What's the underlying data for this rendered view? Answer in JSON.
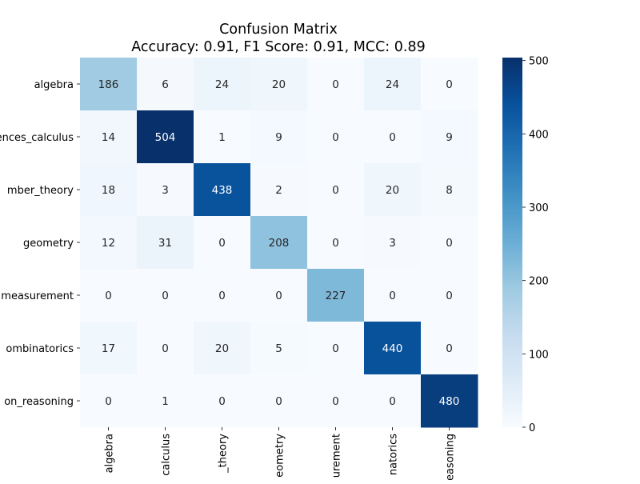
{
  "chart_data": {
    "type": "heatmap",
    "title": "Confusion Matrix",
    "subtitle": "Accuracy: 0.91, F1 Score: 0.91, MCC: 0.89",
    "row_labels": [
      "algebra",
      "ences_calculus",
      "mber_theory",
      "geometry",
      "measurement",
      "ombinatorics",
      "on_reasoning"
    ],
    "col_labels": [
      "algebra",
      "calculus",
      "_theory",
      "eometry",
      "urement",
      "natorics",
      "easoning"
    ],
    "matrix": [
      [
        186,
        6,
        24,
        20,
        0,
        24,
        0
      ],
      [
        14,
        504,
        1,
        9,
        0,
        0,
        9
      ],
      [
        18,
        3,
        438,
        2,
        0,
        20,
        8
      ],
      [
        12,
        31,
        0,
        208,
        0,
        3,
        0
      ],
      [
        0,
        0,
        0,
        0,
        227,
        0,
        0
      ],
      [
        17,
        0,
        20,
        5,
        0,
        440,
        0
      ],
      [
        0,
        1,
        0,
        0,
        0,
        0,
        480
      ]
    ],
    "colorbar": {
      "min": 0,
      "max": 504,
      "ticks": [
        0,
        100,
        200,
        300,
        400,
        500
      ],
      "colormap": "Blues"
    },
    "colors": {
      "low": "#f7fbff",
      "mid": "#6baed6",
      "high": "#08306b",
      "text_dark": "#262626",
      "text_light": "#ffffff"
    }
  }
}
